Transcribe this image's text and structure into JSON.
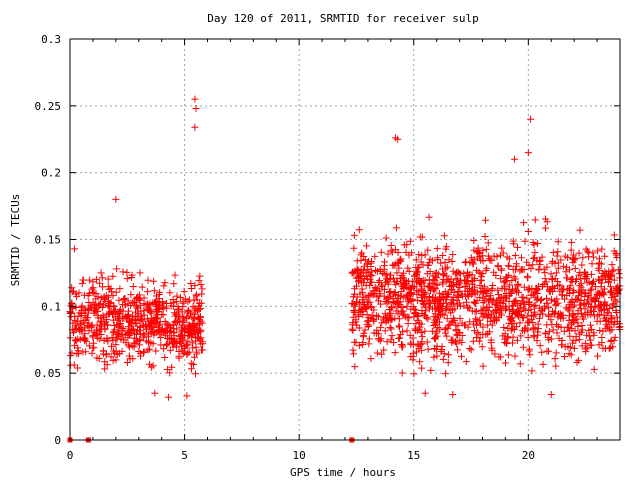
{
  "chart_data": {
    "type": "scatter",
    "title": "Day 120 of 2011, SRMTID for receiver sulp",
    "xlabel": "GPS time / hours",
    "ylabel": "SRMTID / TECUs",
    "xlim": [
      0,
      24
    ],
    "ylim": [
      0,
      0.3
    ],
    "x_ticks": [
      0,
      5,
      10,
      15,
      20
    ],
    "x_tick_labels": [
      "0",
      "5",
      "10",
      "15",
      "20"
    ],
    "y_ticks": [
      0,
      0.05,
      0.1,
      0.15,
      0.2,
      0.25,
      0.3
    ],
    "y_tick_labels": [
      "0",
      "0.05",
      "0.1",
      "0.15",
      "0.2",
      "0.25",
      "0.3"
    ],
    "grid": true,
    "marker": "plus",
    "color": "#ff0000",
    "clusters": [
      {
        "x_range": [
          0.0,
          5.8
        ],
        "y_center": 0.088,
        "y_spread": 0.02,
        "point_count": 700
      },
      {
        "x_range": [
          12.3,
          24.0
        ],
        "y_center": 0.105,
        "y_spread": 0.028,
        "point_count": 1500
      }
    ],
    "outliers": [
      {
        "x": 5.45,
        "y": 0.255
      },
      {
        "x": 5.5,
        "y": 0.248
      },
      {
        "x": 5.45,
        "y": 0.234
      },
      {
        "x": 20.1,
        "y": 0.24
      },
      {
        "x": 14.2,
        "y": 0.226
      },
      {
        "x": 14.3,
        "y": 0.225
      },
      {
        "x": 20.0,
        "y": 0.215
      },
      {
        "x": 19.4,
        "y": 0.21
      },
      {
        "x": 0.2,
        "y": 0.143
      },
      {
        "x": 2.0,
        "y": 0.18
      },
      {
        "x": 3.7,
        "y": 0.035
      },
      {
        "x": 4.3,
        "y": 0.032
      },
      {
        "x": 5.1,
        "y": 0.033
      },
      {
        "x": 16.7,
        "y": 0.034
      },
      {
        "x": 21.0,
        "y": 0.034
      },
      {
        "x": 15.5,
        "y": 0.035
      }
    ],
    "zero_markers": [
      {
        "x": 0.0,
        "y": 0
      },
      {
        "x": 0.8,
        "y": 0
      },
      {
        "x": 12.3,
        "y": 0
      }
    ]
  }
}
